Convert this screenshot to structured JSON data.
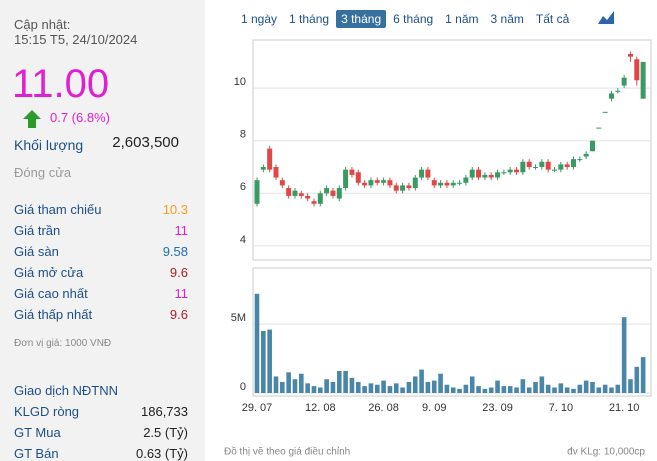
{
  "info": {
    "updated_label": "Cập nhật:",
    "updated_time": "15:15 T5, 24/10/2024",
    "price": "11.00",
    "change": "0.7 (6.8%)",
    "volume_label": "Khối lượng",
    "volume_value": "2,603,500",
    "status": "Đóng cửa",
    "rows": [
      {
        "label": "Giá tham chiếu",
        "value": "10.3",
        "color": "#f0a020"
      },
      {
        "label": "Giá trần",
        "value": "11",
        "color": "#e020d0"
      },
      {
        "label": "Giá sàn",
        "value": "9.58",
        "color": "#1f6fb0"
      },
      {
        "label": "Giá mở cửa",
        "value": "9.6",
        "color": "#b02020"
      },
      {
        "label": "Giá cao nhất",
        "value": "11",
        "color": "#e020d0"
      },
      {
        "label": "Giá thấp nhất",
        "value": "9.6",
        "color": "#b02020"
      }
    ],
    "unit": "Đơn vị giá: 1000 VNĐ",
    "foreign_title": "Giao dịch NĐTNN",
    "foreign_rows": [
      {
        "label": "KLGD ròng",
        "value": "186,733"
      },
      {
        "label": "GT Mua",
        "value": "2.5 (Tỷ)"
      },
      {
        "label": "GT Bán",
        "value": "0.63 (Tỷ)"
      }
    ]
  },
  "tabs": [
    "1 ngày",
    "1 tháng",
    "3 tháng",
    "6 tháng",
    "1 năm",
    "3 năm",
    "Tất cả"
  ],
  "active_tab": 2,
  "footer_left": "Đồ thị vẽ theo giá điều chỉnh",
  "footer_right": "đv KLg: 10,000cp",
  "chart_data": [
    {
      "type": "candlestick",
      "up_color": "#3a9a63",
      "down_color": "#e04848",
      "ylim": [
        3.5,
        11.7
      ],
      "yticks": [
        4,
        6,
        8,
        10
      ],
      "grid": true,
      "open": [
        5.6,
        6.9,
        7.7,
        7.0,
        6.5,
        6.2,
        5.9,
        6.0,
        5.9,
        5.7,
        5.6,
        6.0,
        6.1,
        5.8,
        6.2,
        6.9,
        6.8,
        6.4,
        6.3,
        6.5,
        6.4,
        6.5,
        6.3,
        6.1,
        6.3,
        6.2,
        6.6,
        6.9,
        6.5,
        6.3,
        6.4,
        6.3,
        6.4,
        6.4,
        6.6,
        6.9,
        6.6,
        6.7,
        6.6,
        6.8,
        6.8,
        6.9,
        6.8,
        7.2,
        7.0,
        7.0,
        7.2,
        6.9,
        6.9,
        7.1,
        7.0,
        7.3,
        7.4,
        7.6,
        8.5,
        9.1,
        9.6,
        9.9,
        10.1,
        11.3,
        11.1,
        9.6
      ],
      "high": [
        6.6,
        7.1,
        7.8,
        7.1,
        6.6,
        6.3,
        6.2,
        6.1,
        6.0,
        5.8,
        6.1,
        6.3,
        6.2,
        6.3,
        7.0,
        7.0,
        6.9,
        6.5,
        6.6,
        6.6,
        6.6,
        6.6,
        6.4,
        6.4,
        6.4,
        6.7,
        7.0,
        7.0,
        6.6,
        6.5,
        6.5,
        6.5,
        6.5,
        6.7,
        7.0,
        7.0,
        6.8,
        6.8,
        6.9,
        6.9,
        7.0,
        7.0,
        7.3,
        7.3,
        7.1,
        7.3,
        7.3,
        7.0,
        7.2,
        7.2,
        7.4,
        7.4,
        7.6,
        8.0,
        8.5,
        9.1,
        9.9,
        10.0,
        10.5,
        11.4,
        11.2,
        11.0
      ],
      "low": [
        5.5,
        6.8,
        6.8,
        6.5,
        6.2,
        5.8,
        5.8,
        5.8,
        5.7,
        5.5,
        5.5,
        5.9,
        5.8,
        5.7,
        6.1,
        6.6,
        6.3,
        6.2,
        6.2,
        6.3,
        6.3,
        6.2,
        6.0,
        6.0,
        6.1,
        6.1,
        6.5,
        6.5,
        6.2,
        6.2,
        6.2,
        6.2,
        6.3,
        6.3,
        6.5,
        6.5,
        6.5,
        6.5,
        6.5,
        6.7,
        6.7,
        6.7,
        6.7,
        6.9,
        6.9,
        6.9,
        6.8,
        6.8,
        6.8,
        6.9,
        6.9,
        7.2,
        7.3,
        7.6,
        8.5,
        9.1,
        9.5,
        9.8,
        10.0,
        11.0,
        10.1,
        9.6
      ],
      "close": [
        6.5,
        7.0,
        6.9,
        6.6,
        6.3,
        5.9,
        6.1,
        5.9,
        5.8,
        5.6,
        6.0,
        6.2,
        5.9,
        6.2,
        6.9,
        6.7,
        6.4,
        6.3,
        6.5,
        6.4,
        6.5,
        6.3,
        6.1,
        6.3,
        6.2,
        6.6,
        6.9,
        6.6,
        6.3,
        6.4,
        6.3,
        6.4,
        6.4,
        6.6,
        6.9,
        6.6,
        6.7,
        6.6,
        6.8,
        6.8,
        6.9,
        6.8,
        7.2,
        7.0,
        7.0,
        7.2,
        6.9,
        6.9,
        7.1,
        7.0,
        7.3,
        7.3,
        7.5,
        8.0,
        8.5,
        9.1,
        9.8,
        9.9,
        10.4,
        11.2,
        10.3,
        11.0
      ]
    },
    {
      "type": "bar",
      "color": "#4a86a8",
      "ylim": [
        0,
        9000000
      ],
      "yticks": [
        0,
        {
          "value": 5000000,
          "label": "5M"
        }
      ],
      "grid": true,
      "categories": [
        "29. 07",
        null,
        null,
        null,
        null,
        null,
        null,
        null,
        null,
        null,
        "12. 08",
        null,
        null,
        null,
        null,
        null,
        null,
        null,
        null,
        null,
        "26. 08",
        null,
        null,
        null,
        null,
        null,
        null,
        null,
        "9. 09",
        null,
        null,
        null,
        null,
        null,
        null,
        null,
        null,
        null,
        "23. 09",
        null,
        null,
        null,
        null,
        null,
        null,
        null,
        null,
        null,
        "7. 10",
        null,
        null,
        null,
        null,
        null,
        null,
        null,
        null,
        null,
        "21. 10",
        null,
        null,
        null
      ],
      "values": [
        7200000,
        4500000,
        4600000,
        1200000,
        800000,
        1500000,
        1000000,
        1400000,
        700000,
        500000,
        400000,
        1000000,
        800000,
        1600000,
        1600000,
        1100000,
        800000,
        500000,
        700000,
        600000,
        900000,
        500000,
        700000,
        400000,
        800000,
        1200000,
        1700000,
        800000,
        900000,
        1400000,
        600000,
        400000,
        300000,
        600000,
        1200000,
        500000,
        300000,
        400000,
        900000,
        500000,
        500000,
        400000,
        1000000,
        400000,
        800000,
        1200000,
        600000,
        400000,
        700000,
        400000,
        300000,
        600000,
        900000,
        800000,
        400000,
        600000,
        400000,
        600000,
        5500000,
        1000000,
        1900000,
        2603500
      ]
    }
  ]
}
